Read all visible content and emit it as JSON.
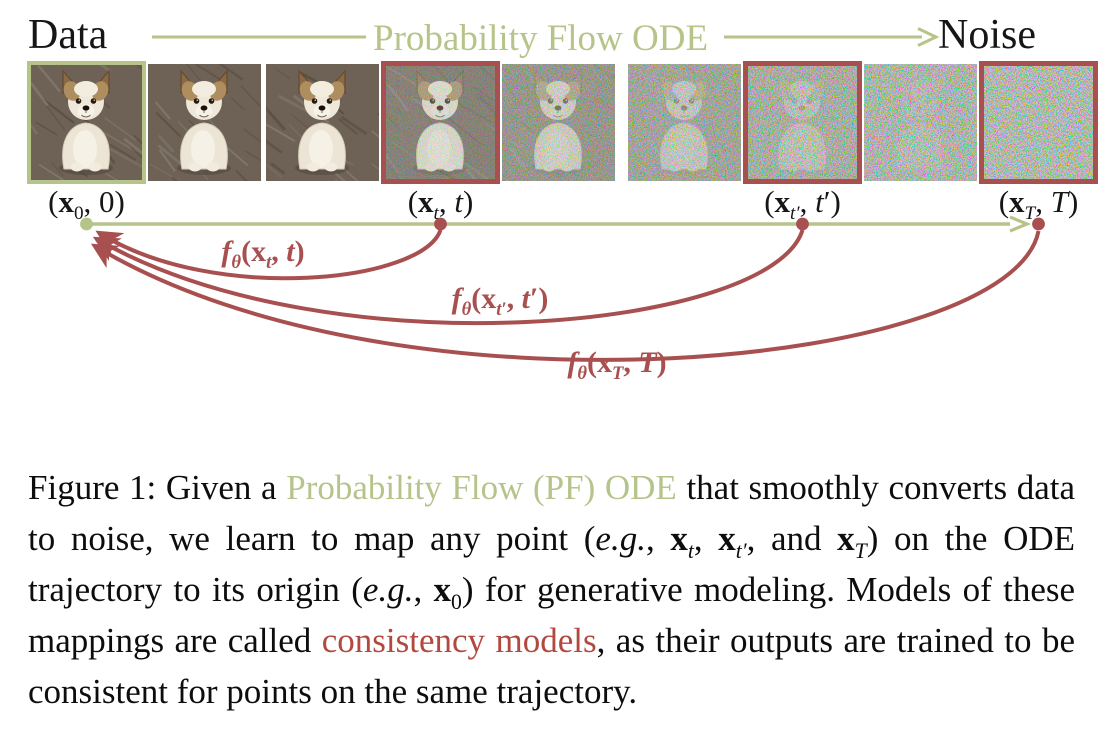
{
  "colors": {
    "green": "#b7c489",
    "red": "#a85050",
    "caption_green": "#b5c48b",
    "caption_red": "#b2493f",
    "text": "#111111"
  },
  "header": {
    "left_label": "Data",
    "flow_label": "Probability Flow ODE",
    "right_label": "Noise"
  },
  "sequence": {
    "description": "dog photo progressively corrupted into noise along PF ODE",
    "tiles": [
      {
        "name": "x0-image",
        "noise": 0,
        "border": "green"
      },
      {
        "name": "step-image-2",
        "noise": 0,
        "border": null
      },
      {
        "name": "step-image-3",
        "noise": 0,
        "border": null
      },
      {
        "name": "xt-image",
        "noise": 0.38,
        "border": "red"
      },
      {
        "name": "step-image-5",
        "noise": 0.62,
        "border": null
      },
      {
        "name": "step-image-6",
        "noise": 0.78,
        "border": null
      },
      {
        "name": "xt-prime-image",
        "noise": 0.88,
        "border": "red"
      },
      {
        "name": "step-image-8",
        "noise": 0.96,
        "border": null
      },
      {
        "name": "xT-image",
        "noise": 1,
        "border": "red"
      }
    ]
  },
  "point_labels": [
    {
      "name": "point-label-x0",
      "tile": 0,
      "parts": [
        {
          "t": "("
        },
        {
          "t": "x",
          "b": 1
        },
        {
          "t": "0",
          "sub": 1
        },
        {
          "t": ", 0)"
        }
      ]
    },
    {
      "name": "point-label-xt",
      "tile": 3,
      "parts": [
        {
          "t": "("
        },
        {
          "t": "x",
          "b": 1
        },
        {
          "t": "t",
          "sub": 1,
          "i": 1
        },
        {
          "t": ", "
        },
        {
          "t": "t",
          "i": 1
        },
        {
          "t": ")"
        }
      ]
    },
    {
      "name": "point-label-xt-prime",
      "tile": 6,
      "parts": [
        {
          "t": "("
        },
        {
          "t": "x",
          "b": 1
        },
        {
          "t": "t′",
          "sub": 1,
          "i": 1
        },
        {
          "t": ", "
        },
        {
          "t": "t",
          "i": 1
        },
        {
          "t": "′)"
        }
      ]
    },
    {
      "name": "point-label-xT",
      "tile": 8,
      "parts": [
        {
          "t": "("
        },
        {
          "t": "x",
          "b": 1
        },
        {
          "t": "T",
          "sub": 1,
          "i": 1
        },
        {
          "t": ", "
        },
        {
          "t": "T",
          "i": 1
        },
        {
          "t": ")"
        }
      ]
    }
  ],
  "map_labels": [
    {
      "name": "map-label-f-xt",
      "parts": [
        {
          "t": "f",
          "i": 1
        },
        {
          "t": "θ",
          "sub": 1,
          "i": 1
        },
        {
          "t": "("
        },
        {
          "t": "x"
        },
        {
          "t": "t",
          "sub": 1,
          "i": 1
        },
        {
          "t": ", "
        },
        {
          "t": "t",
          "i": 1
        },
        {
          "t": ")"
        }
      ]
    },
    {
      "name": "map-label-f-xt-prime",
      "parts": [
        {
          "t": "f",
          "i": 1
        },
        {
          "t": "θ",
          "sub": 1,
          "i": 1
        },
        {
          "t": "("
        },
        {
          "t": "x"
        },
        {
          "t": "t′",
          "sub": 1,
          "i": 1
        },
        {
          "t": ", "
        },
        {
          "t": "t",
          "i": 1
        },
        {
          "t": "′)"
        }
      ]
    },
    {
      "name": "map-label-f-xT",
      "parts": [
        {
          "t": "f",
          "i": 1
        },
        {
          "t": "θ",
          "sub": 1,
          "i": 1
        },
        {
          "t": "("
        },
        {
          "t": "x"
        },
        {
          "t": "T",
          "sub": 1,
          "i": 1
        },
        {
          "t": ", "
        },
        {
          "t": "T",
          "i": 1
        },
        {
          "t": ")"
        }
      ]
    }
  ],
  "caption": {
    "segments": [
      {
        "t": "Figure 1: Given a "
      },
      {
        "t": "Probability Flow (PF) ODE",
        "c": "caption_green"
      },
      {
        "t": " that smoothly converts data to noise, we learn to map any point ("
      },
      {
        "t": "e.g.",
        "i": 1
      },
      {
        "t": ", "
      },
      {
        "t": "x",
        "b": 1
      },
      {
        "t": "t",
        "sub": 1,
        "i": 1
      },
      {
        "t": ", "
      },
      {
        "t": "x",
        "b": 1
      },
      {
        "t": "t′",
        "sub": 1,
        "i": 1
      },
      {
        "t": ", and "
      },
      {
        "t": "x",
        "b": 1
      },
      {
        "t": "T",
        "sub": 1,
        "i": 1
      },
      {
        "t": ") on the ODE trajectory to its origin ("
      },
      {
        "t": "e.g.",
        "i": 1
      },
      {
        "t": ", "
      },
      {
        "t": "x",
        "b": 1
      },
      {
        "t": "0",
        "sub": 1
      },
      {
        "t": ") for generative modeling.  Models of these mappings are called "
      },
      {
        "t": "consistency models",
        "c": "caption_red"
      },
      {
        "t": ", as their outputs are trained to be consistent for points on the same trajectory."
      }
    ]
  }
}
